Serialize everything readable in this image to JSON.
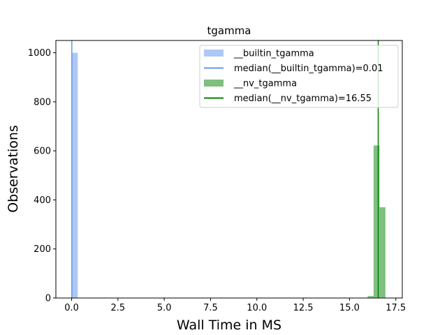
{
  "chart_data": {
    "type": "bar",
    "title": "tgamma",
    "xlabel": "Wall Time in MS",
    "ylabel": "Observations",
    "xlim": [
      -0.85,
      17.85
    ],
    "ylim": [
      0,
      1050
    ],
    "xticks": [
      0.0,
      2.5,
      5.0,
      7.5,
      10.0,
      12.5,
      15.0,
      17.5
    ],
    "xtick_labels": [
      "0.0",
      "2.5",
      "5.0",
      "7.5",
      "10.0",
      "12.5",
      "15.0",
      "17.5"
    ],
    "yticks": [
      0,
      200,
      400,
      600,
      800,
      1000
    ],
    "ytick_labels": [
      "0",
      "200",
      "400",
      "600",
      "800",
      "1000"
    ],
    "grid": false,
    "legend_position": "top-right",
    "series": [
      {
        "name": "__builtin_tgamma",
        "kind": "histogram",
        "color": "#aec8f5",
        "bins": [
          {
            "x0": 0.0,
            "x1": 0.33,
            "count": 1000
          }
        ]
      },
      {
        "name": "median(__builtin_tgamma)=0.01",
        "kind": "vline",
        "color": "#6495ed",
        "x": 0.01
      },
      {
        "name": "__nv_tgamma",
        "kind": "histogram",
        "color": "#7fbf7f",
        "bins": [
          {
            "x0": 15.98,
            "x1": 16.3,
            "count": 8
          },
          {
            "x0": 16.3,
            "x1": 16.62,
            "count": 622
          },
          {
            "x0": 16.62,
            "x1": 16.94,
            "count": 370
          }
        ]
      },
      {
        "name": "median(__nv_tgamma)=16.55",
        "kind": "vline",
        "color": "#008000",
        "x": 16.55
      }
    ]
  }
}
